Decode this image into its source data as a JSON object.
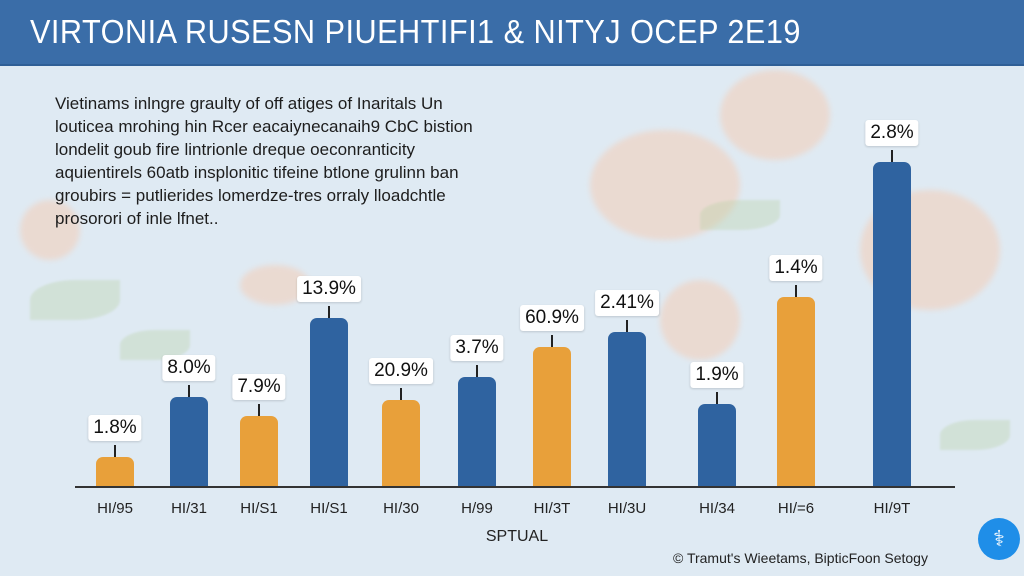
{
  "header": {
    "title": "VIRTONIA RUSESN PIUEHTIFI1 &  NITYJ OCEP 2E19"
  },
  "description": [
    "Vietinams inlngre graulty of off atiges of Inaritals Un",
    "louticea mrohing hin Rcer eacaiynecanaih9 CbC bistion",
    "londelit goub fire lintrionle dreque oeconranticity",
    "aquientirels 60atb insplonitic tifeine btlone grulinn ban",
    "groubirs = putlierides lomerdze-tres orraly lloadchtle",
    "prosorori of inle lfnet.."
  ],
  "chart_data": {
    "type": "bar",
    "title": "VIRTONIA RUSESN PIUEHTIFI1 &  NITYJ OCEP 2E19",
    "categories": [
      "HI/95",
      "HI/31",
      "HI/S1",
      "HI/S1",
      "HI/30",
      "H/99",
      "HI/3T",
      "HI/3U",
      "HI/34",
      "HI/=6",
      "HI/9T"
    ],
    "values": [
      29,
      89,
      70,
      168,
      86,
      109,
      139,
      154,
      82,
      189,
      324
    ],
    "value_note": "relative bar heights (no y-axis shown)",
    "data_labels": [
      "1.8%",
      "8.0%",
      "7.9%",
      "13.9%",
      "20.9%",
      "3.7%",
      "60.9%",
      "2.41%",
      "1.9%",
      "1.4%",
      "2.8%"
    ],
    "bar_colors": [
      "orange",
      "blue",
      "orange",
      "blue",
      "orange",
      "blue",
      "orange",
      "blue",
      "blue",
      "orange",
      "blue"
    ],
    "xlabel": "SPTUAL",
    "ylabel": "",
    "ylim": [
      0,
      340
    ],
    "grid": false,
    "legend": "none"
  },
  "colors": {
    "blue": "#2f63a0",
    "orange": "#e8a03a",
    "header": "#3a6da8"
  },
  "footer": {
    "credit": "© Tramut's Wieetams, BipticFoon Setogy",
    "logo_icon": "dna-icon"
  }
}
